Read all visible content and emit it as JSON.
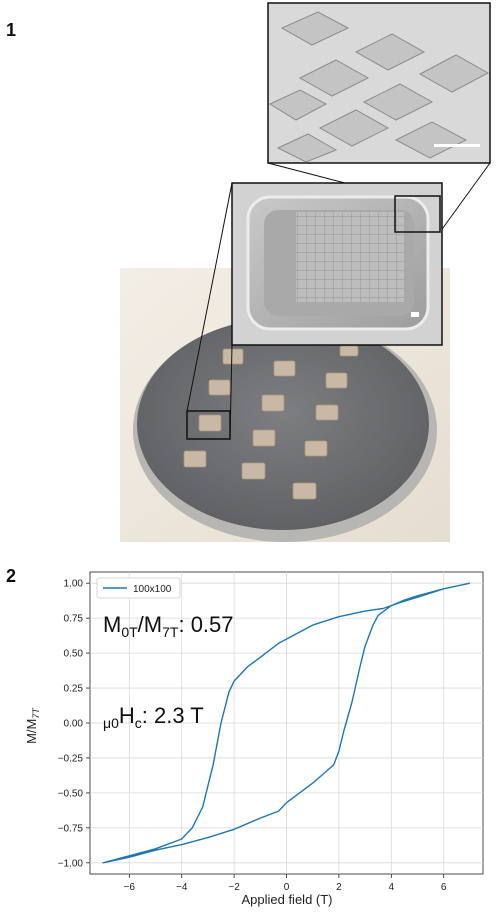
{
  "figure": {
    "panel1_label": "1",
    "panel2_label": "2"
  },
  "colors": {
    "series": "#1f77b4",
    "grid": "#d9d9d9",
    "wafer": "#6f7073",
    "pad": "#c9b8a3"
  },
  "chart_data": {
    "type": "line",
    "xlabel": "Applied field (T)",
    "ylabel": "M/M7T",
    "xlim": [
      -7.5,
      7.5
    ],
    "ylim": [
      -1.08,
      1.08
    ],
    "x_ticks": [
      -6,
      -4,
      -2,
      0,
      2,
      4,
      6
    ],
    "y_ticks": [
      -1.0,
      -0.75,
      -0.5,
      -0.25,
      0.0,
      0.25,
      0.5,
      0.75,
      1.0
    ],
    "x_tick_labels": [
      "−6",
      "−4",
      "−2",
      "0",
      "2",
      "4",
      "6"
    ],
    "y_tick_labels": [
      "−1.00",
      "−0.75",
      "−0.50",
      "−0.25",
      "0.00",
      "0.25",
      "0.50",
      "0.75",
      "1.00"
    ],
    "grid": true,
    "legend_position": "top-left",
    "series": [
      {
        "name": "100x100",
        "color": "#1f77b4",
        "x": [
          7.0,
          6.0,
          5.0,
          4.3,
          4.0,
          3.7,
          3.0,
          2.0,
          1.0,
          0.0,
          -0.3,
          -1.0,
          -1.5,
          -2.0,
          -2.2,
          -2.5,
          -2.8,
          -3.2,
          -3.6,
          -4.0,
          -5.0,
          -6.0,
          -7.0,
          -6.0,
          -5.0,
          -4.0,
          -3.0,
          -2.0,
          -1.0,
          -0.3,
          0.0,
          1.0,
          1.8,
          2.0,
          2.2,
          2.5,
          2.8,
          3.0,
          3.3,
          3.5,
          4.0,
          4.5,
          5.0,
          6.0,
          7.0
        ],
        "y": [
          1.0,
          0.96,
          0.9,
          0.86,
          0.84,
          0.82,
          0.8,
          0.76,
          0.7,
          0.6,
          0.57,
          0.47,
          0.4,
          0.3,
          0.22,
          0.0,
          -0.3,
          -0.6,
          -0.75,
          -0.83,
          -0.9,
          -0.95,
          -1.0,
          -0.96,
          -0.91,
          -0.87,
          -0.82,
          -0.76,
          -0.68,
          -0.63,
          -0.57,
          -0.43,
          -0.3,
          -0.2,
          -0.05,
          0.15,
          0.4,
          0.55,
          0.7,
          0.77,
          0.84,
          0.88,
          0.91,
          0.96,
          1.0
        ]
      }
    ],
    "annotations": [
      {
        "main": "M",
        "sub1": "0T",
        "mid": "/M",
        "sub2": "7T",
        "rest": ": 0.57"
      },
      {
        "prefix_sub": "μ0",
        "main": "H",
        "sub": "c",
        "rest": ": 2.3 T"
      }
    ]
  }
}
